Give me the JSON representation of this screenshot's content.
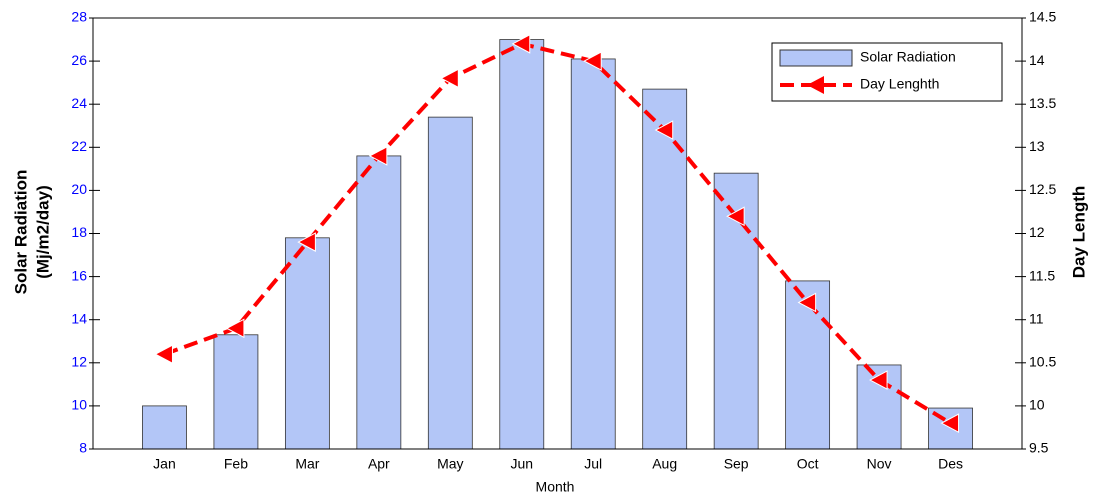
{
  "chart_data": {
    "type": "bar_line",
    "xlabel": "Month",
    "ylabel": [
      "Solar Radiation",
      "(Mj/m2/day)"
    ],
    "y2label": "Day Length",
    "categories": [
      "Jan",
      "Feb",
      "Mar",
      "Apr",
      "May",
      "Jun",
      "Jul",
      "Aug",
      "Sep",
      "Oct",
      "Nov",
      "Des"
    ],
    "series": [
      {
        "name": "Solar Radiation",
        "type": "bar",
        "color": "#b3c6f7",
        "values": [
          10.0,
          13.3,
          17.8,
          21.6,
          23.4,
          27.0,
          26.1,
          24.7,
          20.8,
          15.8,
          11.9,
          9.9
        ]
      },
      {
        "name": "Day Lenghth",
        "type": "line",
        "axis": "y2",
        "color": "#ff0000",
        "values": [
          10.6,
          10.9,
          11.9,
          12.9,
          13.8,
          14.2,
          14.0,
          13.2,
          12.2,
          11.2,
          10.3,
          9.8
        ]
      }
    ],
    "ylim": [
      8,
      28
    ],
    "yticks": [
      8,
      10,
      12,
      14,
      16,
      18,
      20,
      22,
      24,
      26,
      28
    ],
    "y2lim": [
      9.5,
      14.5
    ],
    "y2ticks": [
      9.5,
      10,
      10.5,
      11,
      11.5,
      12,
      12.5,
      13,
      13.5,
      14,
      14.5
    ],
    "legend": "top-right"
  }
}
